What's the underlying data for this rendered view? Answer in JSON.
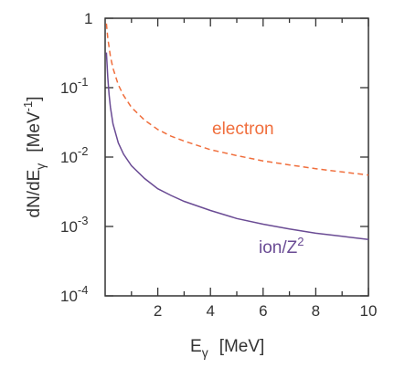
{
  "chart_data": {
    "type": "line",
    "title": "",
    "xlabel": "E",
    "xlabel_sub": "γ",
    "xlabel_unit": "[MeV]",
    "ylabel_prefix": "dN/dE",
    "ylabel_sub": "γ",
    "ylabel_unit_open": "[MeV",
    "ylabel_unit_exp": "-1",
    "ylabel_unit_close": "]",
    "xlim": [
      0,
      10
    ],
    "ylim": [
      0.0001,
      1
    ],
    "yscale": "log",
    "grid": false,
    "x_ticks": [
      {
        "value": 2,
        "label": "2"
      },
      {
        "value": 4,
        "label": "4"
      },
      {
        "value": 6,
        "label": "6"
      },
      {
        "value": 8,
        "label": "8"
      },
      {
        "value": 10,
        "label": "10"
      }
    ],
    "y_ticks": [
      {
        "value": 1,
        "base": "1",
        "exp": ""
      },
      {
        "value": 0.1,
        "base": "10",
        "exp": "-1"
      },
      {
        "value": 0.01,
        "base": "10",
        "exp": "-2"
      },
      {
        "value": 0.001,
        "base": "10",
        "exp": "-3"
      },
      {
        "value": 0.0001,
        "base": "10",
        "exp": "-4"
      }
    ],
    "series": [
      {
        "name": "electron",
        "label_base": "electron",
        "label_exp": "",
        "color": "#f06e3c",
        "dash": "dashed",
        "x": [
          0.05,
          0.1,
          0.2,
          0.3,
          0.5,
          0.7,
          1.0,
          1.5,
          2.0,
          2.5,
          3.0,
          4.0,
          5.0,
          6.0,
          7.0,
          8.0,
          9.0,
          10.0
        ],
        "y": [
          0.84,
          0.52,
          0.28,
          0.19,
          0.11,
          0.077,
          0.052,
          0.034,
          0.025,
          0.02,
          0.017,
          0.0128,
          0.0105,
          0.0088,
          0.0077,
          0.0068,
          0.0061,
          0.0055
        ]
      },
      {
        "name": "ion/Z2",
        "label_base": "ion/Z",
        "label_exp": "2",
        "color": "#6a4b94",
        "dash": "solid",
        "x": [
          0.05,
          0.1,
          0.15,
          0.2,
          0.3,
          0.5,
          0.7,
          1.0,
          1.5,
          2.0,
          2.5,
          3.0,
          4.0,
          5.0,
          6.0,
          7.0,
          8.0,
          9.0,
          10.0
        ],
        "y": [
          0.32,
          0.14,
          0.08,
          0.052,
          0.03,
          0.016,
          0.011,
          0.0075,
          0.0049,
          0.0035,
          0.0028,
          0.0023,
          0.0017,
          0.0013,
          0.00108,
          0.00092,
          0.0008,
          0.00072,
          0.00065
        ]
      }
    ]
  }
}
